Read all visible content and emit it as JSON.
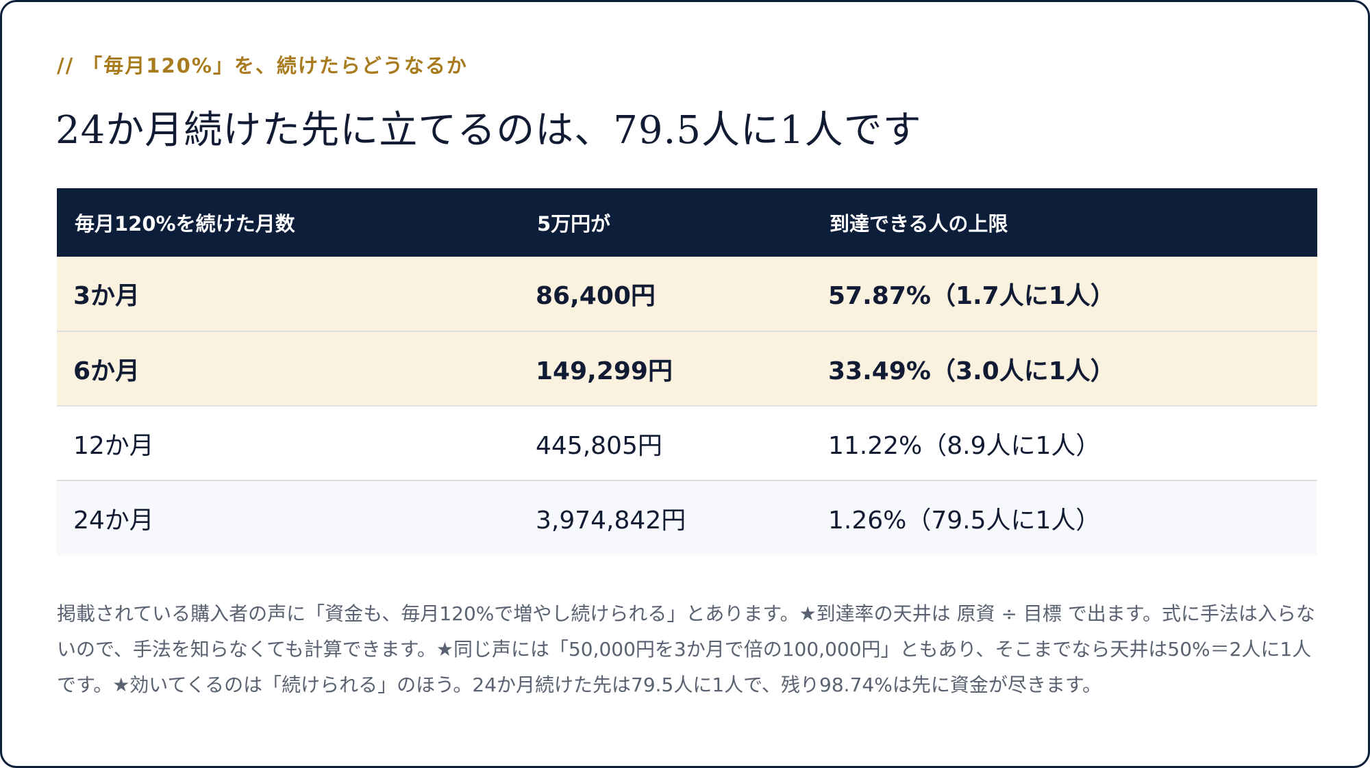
{
  "eyebrow": "// 「毎月120%」を、続けたらどうなるか",
  "headline": "24か月続けた先に立てるのは、79.5人に1人です",
  "table": {
    "headers": [
      "毎月120%を続けた月数",
      "5万円が",
      "到達できる人の上限"
    ],
    "rows": [
      [
        "3か月",
        "86,400円",
        "57.87%（1.7人に1人）"
      ],
      [
        "6か月",
        "149,299円",
        "33.49%（3.0人に1人）"
      ],
      [
        "12か月",
        "445,805円",
        "11.22%（8.9人に1人）"
      ],
      [
        "24か月",
        "3,974,842円",
        "1.26%（79.5人に1人）"
      ]
    ]
  },
  "note": "掲載されている購入者の声に「資金も、毎月120%で増やし続けられる」とあります。★到達率の天井は 原資 ÷ 目標 で出ます。式に手法は入らないので、手法を知らなくても計算できます。★同じ声には「50,000円を3か月で倍の100,000円」ともあり、そこまでなら天井は50%＝2人に1人です。★効いてくるのは「続けられる」のほう。24か月続けた先は79.5人に1人で、残り98.74%は先に資金が尽きます。",
  "colors": {
    "navy": "#0c1e3a",
    "gold": "#a87b1e",
    "highlight_row": "#faf1df"
  }
}
